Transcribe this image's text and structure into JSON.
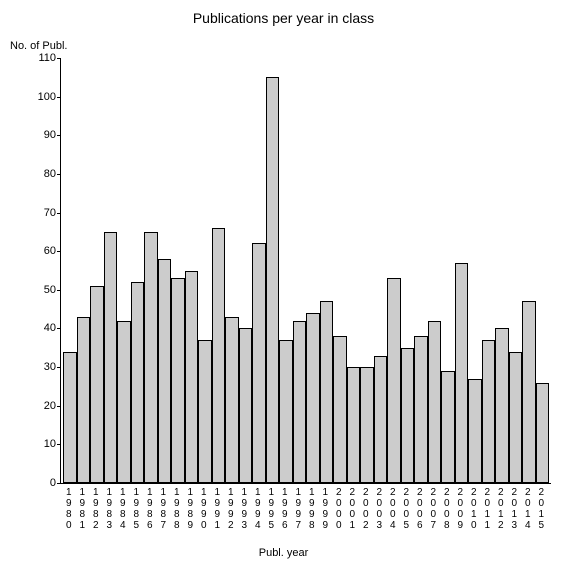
{
  "chart": {
    "type": "bar",
    "title": "Publications per year in class",
    "y_axis_label": "No. of Publ.",
    "x_axis_label": "Publ. year",
    "title_fontsize": 14,
    "label_fontsize": 11,
    "tick_fontsize": 11,
    "background_color": "#ffffff",
    "bar_color": "#cccccc",
    "bar_border_color": "#000000",
    "axis_color": "#000000",
    "ylim": [
      0,
      110
    ],
    "ytick_step": 10,
    "yticks": [
      0,
      10,
      20,
      30,
      40,
      50,
      60,
      70,
      80,
      90,
      100,
      110
    ],
    "categories": [
      "1980",
      "1981",
      "1982",
      "1983",
      "1984",
      "1985",
      "1986",
      "1987",
      "1988",
      "1989",
      "1990",
      "1991",
      "1992",
      "1993",
      "1994",
      "1995",
      "1996",
      "1997",
      "1998",
      "1999",
      "2000",
      "2001",
      "2002",
      "2003",
      "2004",
      "2005",
      "2006",
      "2007",
      "2008",
      "2009",
      "2010",
      "2011",
      "2012",
      "2013",
      "2014",
      "2015"
    ],
    "values": [
      34,
      43,
      51,
      65,
      42,
      52,
      65,
      58,
      53,
      55,
      37,
      66,
      43,
      40,
      62,
      105,
      37,
      42,
      44,
      47,
      38,
      30,
      30,
      33,
      53,
      35,
      38,
      42,
      29,
      57,
      27,
      37,
      40,
      34,
      47,
      26
    ],
    "bar_width": 1.0
  }
}
